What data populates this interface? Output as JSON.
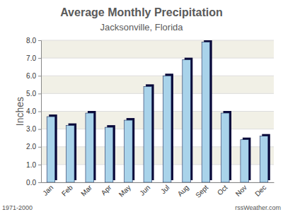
{
  "chart_data": {
    "type": "bar",
    "title": "Average Monthly Precipitation",
    "subtitle": "Jacksonville, Florida",
    "y_label": "Inches",
    "categories": [
      "Jan",
      "Feb",
      "Mar",
      "Apr",
      "May",
      "Jun",
      "Jul",
      "Aug",
      "Sept",
      "Oct",
      "Nov",
      "Dec"
    ],
    "values": [
      3.7,
      3.2,
      3.9,
      3.1,
      3.5,
      5.4,
      6.0,
      6.9,
      7.9,
      3.9,
      2.4,
      2.6
    ],
    "color": "#a9d3ea",
    "ylim": [
      0,
      8
    ],
    "yticks": [
      {
        "value": 0,
        "label": "0.0"
      },
      {
        "value": 1,
        "label": "1.0"
      },
      {
        "value": 2,
        "label": "2.0"
      },
      {
        "value": 3,
        "label": "3.0"
      },
      {
        "value": 4,
        "label": "4.0"
      },
      {
        "value": 5,
        "label": "5.0"
      },
      {
        "value": 6,
        "label": "6.0"
      },
      {
        "value": 7,
        "label": "7.0"
      },
      {
        "value": 8,
        "label": "8.0"
      }
    ],
    "grid": true,
    "annotations": [
      "1971-2000",
      "rssWeather.com"
    ]
  }
}
